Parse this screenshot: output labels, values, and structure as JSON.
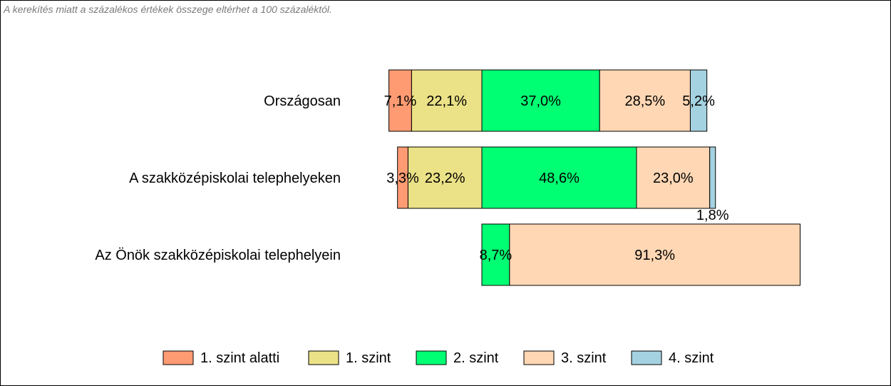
{
  "note": "A kerekítés miatt a  százalékos értékek összege eltérhet a 100 százaléktól.",
  "chart_data": {
    "type": "bar",
    "orientation": "horizontal",
    "stacked": "100%",
    "diverging": true,
    "categories": [
      "Országosan",
      "A szakközépiskolai telephelyeken",
      "Az Önök szakközépiskolai telephelyein"
    ],
    "series": [
      {
        "name": "1. szint alatti",
        "color": "#ff9b73",
        "values": [
          7.1,
          3.3,
          0.0
        ],
        "labels": [
          "7,1%",
          "3,3%",
          ""
        ]
      },
      {
        "name": "1. szint",
        "color": "#ebe187",
        "values": [
          22.1,
          23.2,
          0.0
        ],
        "labels": [
          "22,1%",
          "23,2%",
          ""
        ]
      },
      {
        "name": "2. szint",
        "color": "#00ff73",
        "values": [
          37.0,
          48.6,
          8.7
        ],
        "labels": [
          "37,0%",
          "48,6%",
          "8,7%"
        ]
      },
      {
        "name": "3. szint",
        "color": "#ffd7b4",
        "values": [
          28.5,
          23.0,
          91.3
        ],
        "labels": [
          "28,5%",
          "23,0%",
          "91,3%"
        ]
      },
      {
        "name": "4. szint",
        "color": "#a5d2e1",
        "values": [
          5.2,
          1.8,
          0.0
        ],
        "labels": [
          "5,2%",
          "1,8%",
          ""
        ]
      }
    ],
    "legend_position": "bottom",
    "grid": false
  }
}
